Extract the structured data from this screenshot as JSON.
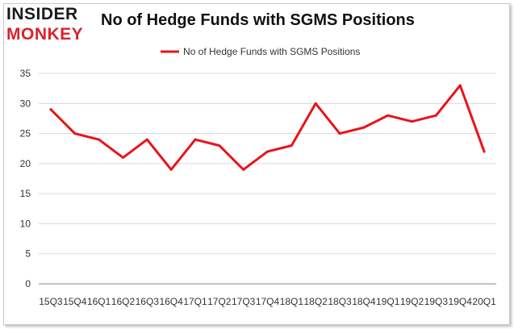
{
  "logo": {
    "line1": "INSIDER",
    "line2": "MONKEY"
  },
  "colors": {
    "series": "#e8141a",
    "grid": "#d9d9d9",
    "axis": "#888888"
  },
  "chart_data": {
    "type": "line",
    "title": "No of Hedge Funds with SGMS Positions",
    "legend": {
      "position": "top-center"
    },
    "grid": true,
    "ylim": [
      0,
      35
    ],
    "yticks": [
      0,
      5,
      10,
      15,
      20,
      25,
      30,
      35
    ],
    "categories": [
      "15Q3",
      "15Q4",
      "16Q1",
      "16Q2",
      "16Q3",
      "16Q4",
      "17Q1",
      "17Q2",
      "17Q3",
      "17Q4",
      "18Q1",
      "18Q2",
      "18Q3",
      "18Q4",
      "19Q1",
      "19Q2",
      "19Q3",
      "19Q4",
      "20Q1"
    ],
    "series": [
      {
        "name": "No of Hedge Funds with SGMS Positions",
        "values": [
          29,
          25,
          24,
          21,
          24,
          19,
          24,
          23,
          19,
          22,
          23,
          30,
          25,
          26,
          28,
          27,
          28,
          33,
          22
        ]
      }
    ]
  }
}
